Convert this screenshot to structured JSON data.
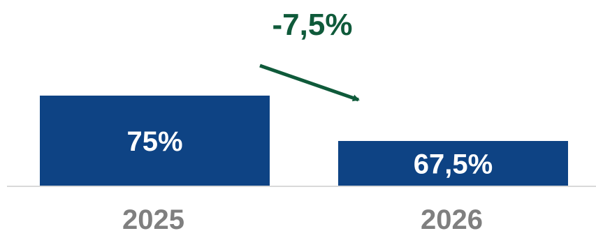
{
  "chart_data": {
    "type": "bar",
    "categories": [
      "2025",
      "2026"
    ],
    "values": [
      75,
      67.5
    ],
    "data_labels": [
      "75%",
      "67,5%"
    ],
    "annotation": "-7,5%",
    "title": "",
    "xlabel": "",
    "ylabel": "",
    "grid": false,
    "legend": "none",
    "colors": {
      "bar": "#0e4384",
      "bar_label": "#ffffff",
      "category_label": "#7f7f7f",
      "annotation": "#0f5a3a",
      "baseline": "#d9d9d9"
    }
  }
}
